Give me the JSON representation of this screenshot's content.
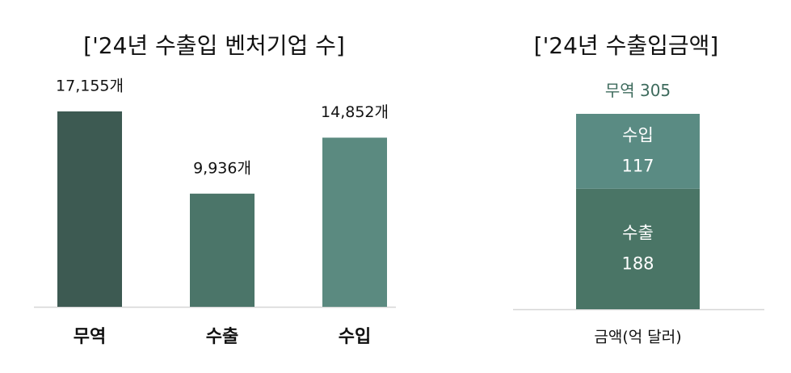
{
  "chart_data": [
    {
      "type": "bar",
      "title": "['24년 수출입 벤처기업 수]",
      "categories": [
        "무역",
        "수출",
        "수입"
      ],
      "values": [
        17155,
        9936,
        14852
      ],
      "value_labels": [
        "17,155개",
        "9,936개",
        "14,852개"
      ],
      "colors": [
        "#3d5a52",
        "#4b7569",
        "#5b8a80"
      ]
    },
    {
      "type": "stacked-bar",
      "title": "['24년 수출입금액]",
      "categories": [
        "금액(억 달러)"
      ],
      "total_label": "무역",
      "total": 305,
      "series": [
        {
          "name": "수출",
          "color": "#4a7566",
          "values": [
            188
          ]
        },
        {
          "name": "수입",
          "color": "#5a8b83",
          "values": [
            117
          ]
        }
      ]
    }
  ]
}
